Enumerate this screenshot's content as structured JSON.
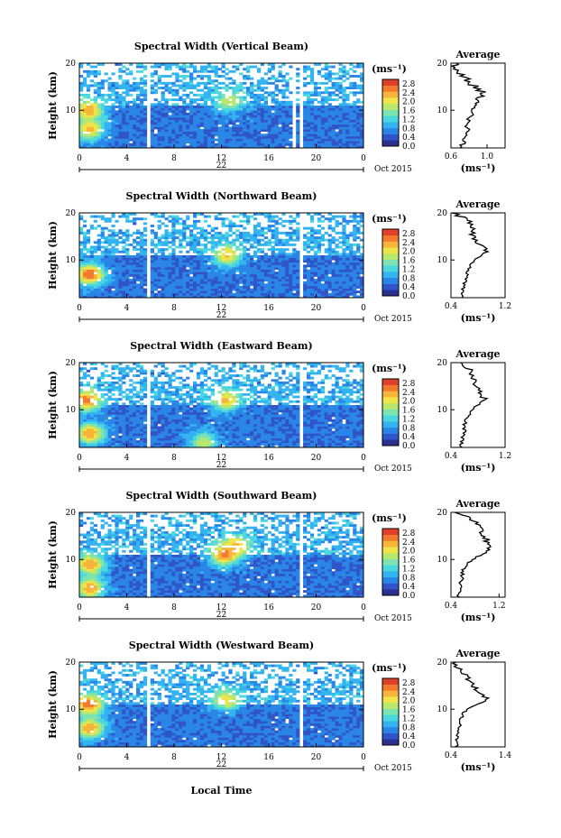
{
  "figure": {
    "xlabel": "Local Time",
    "ylabel": "Height (km)",
    "date_label": "22",
    "month_label": "Oct 2015",
    "colorbar_unit": "(ms⁻¹)",
    "colorbar_ticks": [
      "0.0",
      "0.4",
      "0.8",
      "1.2",
      "1.6",
      "2.0",
      "2.4",
      "2.8"
    ],
    "time_ticks": [
      "0",
      "4",
      "8",
      "12",
      "16",
      "20",
      "0"
    ],
    "height_ticks": [
      "20",
      "10"
    ],
    "avg_title": "Average",
    "avg_unit": "(ms⁻¹)",
    "colormap": [
      "#2b2f8f",
      "#2f55c8",
      "#2a86e6",
      "#33b4f0",
      "#4bd7e0",
      "#7de3b0",
      "#b7e86e",
      "#f0e44a",
      "#f7b43a",
      "#f27a2e",
      "#e0402a"
    ]
  },
  "chart_data": [
    {
      "type": "heatmap",
      "title": "Spectral Width (Vertical Beam)",
      "x_range": [
        0,
        24
      ],
      "y_range": [
        2,
        20
      ],
      "gaps_hours": [
        [
          5.8,
          6.1
        ],
        [
          18.0,
          18.2
        ],
        [
          18.6,
          18.8
        ]
      ],
      "hotspots": [
        {
          "t": 0.8,
          "h": 10,
          "v": 2.4
        },
        {
          "t": 0.9,
          "h": 6,
          "v": 2.2
        },
        {
          "t": 12.7,
          "h": 12,
          "v": 1.8
        }
      ],
      "avg_profile": {
        "x_ticks": [
          "0.6",
          "1.0"
        ],
        "x_range": [
          0.6,
          1.2
        ],
        "height": [
          2,
          4,
          6,
          8,
          10,
          12,
          14,
          16,
          18,
          20
        ],
        "value": [
          0.72,
          0.75,
          0.78,
          0.8,
          0.85,
          0.92,
          0.95,
          0.8,
          0.68,
          0.62
        ]
      }
    },
    {
      "type": "heatmap",
      "title": "Spectral Width (Northward Beam)",
      "x_range": [
        0,
        24
      ],
      "y_range": [
        2,
        20
      ],
      "gaps_hours": [
        [
          5.8,
          6.1
        ],
        [
          17.9,
          18.1
        ],
        [
          18.6,
          18.8
        ]
      ],
      "hotspots": [
        {
          "t": 0.9,
          "h": 7,
          "v": 2.7
        },
        {
          "t": 12.5,
          "h": 11,
          "v": 2.2
        }
      ],
      "avg_profile": {
        "x_ticks": [
          "0.4",
          "1.2"
        ],
        "x_range": [
          0.4,
          1.2
        ],
        "height": [
          2,
          4,
          6,
          8,
          10,
          12,
          14,
          16,
          18,
          20
        ],
        "value": [
          0.55,
          0.58,
          0.62,
          0.65,
          0.75,
          0.95,
          0.8,
          0.7,
          0.68,
          0.45
        ]
      }
    },
    {
      "type": "heatmap",
      "title": "Spectral Width (Eastward Beam)",
      "x_range": [
        0,
        24
      ],
      "y_range": [
        2,
        20
      ],
      "gaps_hours": [
        [
          5.8,
          6.1
        ],
        [
          17.9,
          18.1
        ],
        [
          18.6,
          18.8
        ]
      ],
      "hotspots": [
        {
          "t": 0.6,
          "h": 12,
          "v": 2.6
        },
        {
          "t": 0.9,
          "h": 5,
          "v": 2.4
        },
        {
          "t": 12.4,
          "h": 12,
          "v": 2.2
        },
        {
          "t": 10.5,
          "h": 3,
          "v": 1.8
        }
      ],
      "avg_profile": {
        "x_ticks": [
          "0.4",
          "1.2"
        ],
        "x_range": [
          0.4,
          1.2
        ],
        "height": [
          2,
          4,
          6,
          8,
          10,
          12,
          14,
          16,
          18,
          20
        ],
        "value": [
          0.55,
          0.58,
          0.6,
          0.62,
          0.7,
          0.9,
          0.85,
          0.75,
          0.72,
          0.5
        ]
      }
    },
    {
      "type": "heatmap",
      "title": "Spectral Width (Southward Beam)",
      "x_range": [
        0,
        24
      ],
      "y_range": [
        2,
        20
      ],
      "gaps_hours": [
        [
          5.8,
          6.1
        ],
        [
          17.9,
          18.1
        ],
        [
          18.6,
          18.8
        ]
      ],
      "hotspots": [
        {
          "t": 0.9,
          "h": 9,
          "v": 2.4
        },
        {
          "t": 0.9,
          "h": 4,
          "v": 2.4
        },
        {
          "t": 12.3,
          "h": 11,
          "v": 2.6
        },
        {
          "t": 13.2,
          "h": 13,
          "v": 2.2
        }
      ],
      "avg_profile": {
        "x_ticks": [
          "0.4",
          "1.2"
        ],
        "x_range": [
          0.4,
          1.3
        ],
        "height": [
          2,
          4,
          6,
          8,
          10,
          12,
          14,
          16,
          18,
          20
        ],
        "value": [
          0.52,
          0.55,
          0.58,
          0.6,
          0.75,
          1.05,
          1.0,
          0.9,
          0.8,
          0.5
        ]
      }
    },
    {
      "type": "heatmap",
      "title": "Spectral Width (Westward Beam)",
      "x_range": [
        0,
        24
      ],
      "y_range": [
        2,
        20
      ],
      "gaps_hours": [
        [
          5.8,
          6.1
        ],
        [
          17.9,
          18.1
        ],
        [
          18.6,
          18.8
        ]
      ],
      "hotspots": [
        {
          "t": 0.8,
          "h": 11,
          "v": 2.6
        },
        {
          "t": 0.9,
          "h": 6,
          "v": 2.4
        },
        {
          "t": 12.4,
          "h": 12,
          "v": 2.0
        }
      ],
      "avg_profile": {
        "x_ticks": [
          "0.4",
          "1.4"
        ],
        "x_range": [
          0.4,
          1.4
        ],
        "height": [
          2,
          4,
          6,
          8,
          10,
          12,
          14,
          16,
          18,
          20
        ],
        "value": [
          0.5,
          0.52,
          0.55,
          0.58,
          0.68,
          1.1,
          0.9,
          0.75,
          0.6,
          0.45
        ]
      }
    }
  ]
}
